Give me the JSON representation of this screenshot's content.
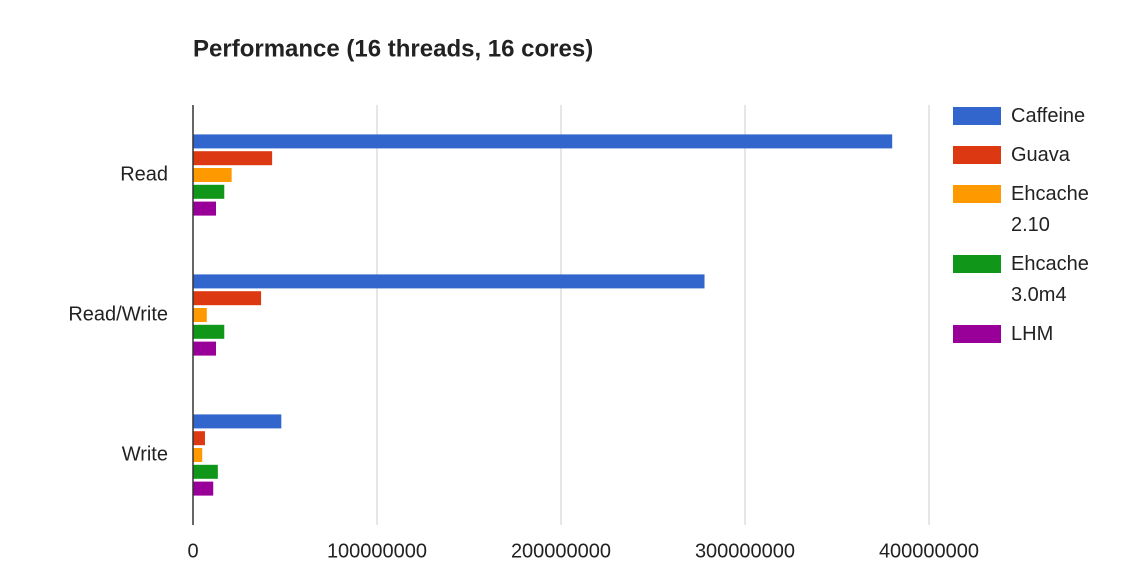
{
  "chart_data": {
    "type": "hbar",
    "title": "Performance (16 threads, 16 cores)",
    "categories": [
      "Read",
      "Read/Write",
      "Write"
    ],
    "series": [
      {
        "name": "Caffeine",
        "color": "#3366cc",
        "values": [
          380000000,
          278000000,
          48000000
        ]
      },
      {
        "name": "Guava",
        "color": "#dc3912",
        "values": [
          43000000,
          37000000,
          6500000
        ]
      },
      {
        "name": "Ehcache 2.10",
        "color": "#ff9900",
        "values": [
          21000000,
          7500000,
          5000000
        ]
      },
      {
        "name": "Ehcache 3.0m4",
        "color": "#109618",
        "values": [
          17000000,
          17000000,
          13500000
        ]
      },
      {
        "name": "LHM",
        "color": "#990099",
        "values": [
          12500000,
          12500000,
          11000000
        ]
      }
    ],
    "xlim": [
      0,
      400000000
    ],
    "xticks": [
      0,
      100000000,
      200000000,
      300000000,
      400000000
    ],
    "grid": true,
    "legend": "right"
  }
}
